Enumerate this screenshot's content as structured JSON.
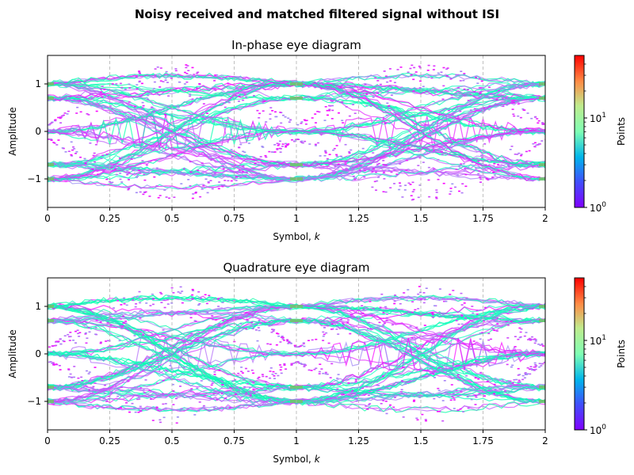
{
  "figure": {
    "suptitle": "Noisy received and matched filtered signal without ISI"
  },
  "chart_data": [
    {
      "type": "heatmap",
      "subtype": "eye-diagram density",
      "title": "In-phase eye diagram",
      "xlabel": "Symbol, k",
      "ylabel": "Amplitude",
      "xlim": [
        0,
        2
      ],
      "ylim": [
        -1.6,
        1.6
      ],
      "x_ticks": [
        0,
        0.25,
        0.5,
        0.75,
        1,
        1.25,
        1.5,
        1.75,
        2
      ],
      "x_tick_labels": [
        "0",
        "0.25",
        "0.5",
        "0.75",
        "1",
        "1.25",
        "1.5",
        "1.75",
        "2"
      ],
      "y_ticks": [
        -1,
        0,
        1
      ],
      "y_tick_labels": [
        "−1",
        "0",
        "1"
      ],
      "grid": "x-only dashed",
      "colorscale": "rainbow",
      "colorbar": {
        "label": "Points",
        "scale": "log",
        "range": [
          1,
          50
        ],
        "tick_labels": [
          "10^0",
          "10^1"
        ]
      },
      "symbol_levels": [
        -1,
        -0.7,
        0,
        0.7,
        1
      ],
      "eye_openings_at_k": [
        0,
        1,
        2
      ]
    },
    {
      "type": "heatmap",
      "subtype": "eye-diagram density",
      "title": "Quadrature eye diagram",
      "xlabel": "Symbol, k",
      "ylabel": "Amplitude",
      "xlim": [
        0,
        2
      ],
      "ylim": [
        -1.6,
        1.6
      ],
      "x_ticks": [
        0,
        0.25,
        0.5,
        0.75,
        1,
        1.25,
        1.5,
        1.75,
        2
      ],
      "x_tick_labels": [
        "0",
        "0.25",
        "0.5",
        "0.75",
        "1",
        "1.25",
        "1.5",
        "1.75",
        "2"
      ],
      "y_ticks": [
        -1,
        0,
        1
      ],
      "y_tick_labels": [
        "−1",
        "0",
        "1"
      ],
      "grid": "x-only dashed",
      "colorscale": "rainbow",
      "colorbar": {
        "label": "Points",
        "scale": "log",
        "range": [
          1,
          50
        ],
        "tick_labels": [
          "10^0",
          "10^1"
        ]
      },
      "symbol_levels": [
        -1,
        -0.7,
        0,
        0.7,
        1
      ],
      "eye_openings_at_k": [
        0,
        1,
        2
      ]
    }
  ]
}
